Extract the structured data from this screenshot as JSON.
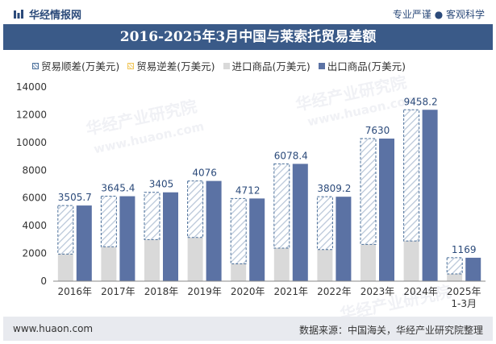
{
  "header": {
    "site_name": "华经情报网",
    "tagline": "专业严谨 ● 客观科学"
  },
  "watermark": {
    "brand": "华经产业研究院",
    "url": "www.huaon.com"
  },
  "chart_data": {
    "type": "bar",
    "title": "2016-2025年3月中国与莱索托贸易差额",
    "categories": [
      "2016年",
      "2017年",
      "2018年",
      "2019年",
      "2020年",
      "2021年",
      "2022年",
      "2023年",
      "2024年",
      "2025年\n1-3月"
    ],
    "series": [
      {
        "name": "贸易顺差(万美元)",
        "values": [
          3505.7,
          3645.4,
          3405,
          4076,
          4712,
          6078.4,
          3809.2,
          7630,
          9458.2,
          1169
        ]
      },
      {
        "name": "贸易逆差(万美元)",
        "values": [
          null,
          null,
          null,
          null,
          null,
          null,
          null,
          null,
          null,
          null
        ]
      },
      {
        "name": "进口商品(万美元)",
        "values": [
          1950,
          2480,
          3000,
          3150,
          1250,
          2380,
          2280,
          2650,
          2900,
          520
        ]
      },
      {
        "name": "出口商品(万美元)",
        "values": [
          5455.7,
          6125.4,
          6405,
          7226,
          5962,
          8458.4,
          6089.2,
          10280,
          12358.2,
          1689
        ]
      }
    ],
    "ylim": [
      0,
      14000
    ],
    "yticks": [
      0,
      2000,
      4000,
      6000,
      8000,
      10000,
      12000,
      14000
    ],
    "colors": {
      "surplus": "#4a6f9a",
      "deficit": "#f1c75b",
      "import": "#d9d9d9",
      "export": "#5b72a4"
    }
  },
  "footer": {
    "website": "www.huaon.com",
    "source": "数据来源：中国海关，华经产业研究院整理"
  }
}
